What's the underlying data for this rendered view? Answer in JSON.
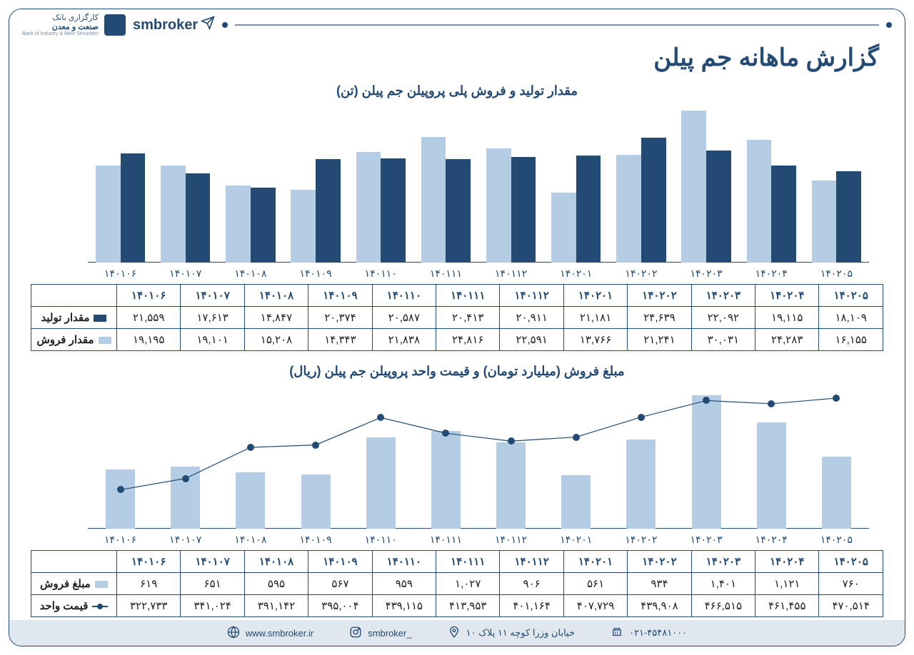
{
  "header": {
    "brand_line1": "کارگزاری بانک",
    "brand_line2": "صنعت و معدن",
    "brand_sub": "Bank of Industry & Mine Securities",
    "smbroker": "smbroker"
  },
  "page_title": "گزارش ماهانه جم پیلن",
  "months": [
    "۱۴۰۱۰۶",
    "۱۴۰۱۰۷",
    "۱۴۰۱۰۸",
    "۱۴۰۱۰۹",
    "۱۴۰۱۱۰",
    "۱۴۰۱۱۱",
    "۱۴۰۱۱۲",
    "۱۴۰۲۰۱",
    "۱۴۰۲۰۲",
    "۱۴۰۲۰۳",
    "۱۴۰۲۰۴",
    "۱۴۰۲۰۵"
  ],
  "chart1": {
    "title": "مقدار تولید و فروش پلی پروپیلن جم پیلن (تن)",
    "type": "bar",
    "series": [
      {
        "name": "مقدار تولید",
        "color": "#234a72",
        "values": [
          21559,
          17613,
          14847,
          20374,
          20587,
          20413,
          20911,
          21181,
          24639,
          22092,
          19115,
          18109
        ],
        "labels": [
          "۲۱,۵۵۹",
          "۱۷,۶۱۳",
          "۱۴,۸۴۷",
          "۲۰,۳۷۴",
          "۲۰,۵۸۷",
          "۲۰,۴۱۳",
          "۲۰,۹۱۱",
          "۲۱,۱۸۱",
          "۲۴,۶۳۹",
          "۲۲,۰۹۲",
          "۱۹,۱۱۵",
          "۱۸,۱۰۹"
        ]
      },
      {
        "name": "مقدار فروش",
        "color": "#b4cde4",
        "values": [
          19195,
          19101,
          15208,
          14343,
          21838,
          24816,
          22591,
          13766,
          21241,
          30031,
          24283,
          16155
        ],
        "labels": [
          "۱۹,۱۹۵",
          "۱۹,۱۰۱",
          "۱۵,۲۰۸",
          "۱۴,۳۴۳",
          "۲۱,۸۳۸",
          "۲۴,۸۱۶",
          "۲۲,۵۹۱",
          "۱۳,۷۶۶",
          "۲۱,۲۴۱",
          "۳۰,۰۳۱",
          "۲۴,۲۸۳",
          "۱۶,۱۵۵"
        ]
      }
    ],
    "ylim": [
      0,
      31000
    ],
    "bar_width_pct": 38,
    "axis_color": "#234a72",
    "background": "#ffffff"
  },
  "chart2": {
    "title": "مبلغ فروش (میلیارد تومان) و قیمت واحد پروپیلن جم پیلن (ریال)",
    "type": "bar+line",
    "bar": {
      "name": "مبلغ فروش",
      "color": "#b4cde4",
      "values": [
        619,
        651,
        595,
        567,
        959,
        1027,
        906,
        561,
        934,
        1401,
        1121,
        760
      ],
      "labels": [
        "۶۱۹",
        "۶۵۱",
        "۵۹۵",
        "۵۶۷",
        "۹۵۹",
        "۱,۰۲۷",
        "۹۰۶",
        "۵۶۱",
        "۹۳۴",
        "۱,۴۰۱",
        "۱,۱۲۱",
        "۷۶۰"
      ],
      "ylim": [
        0,
        1500
      ]
    },
    "line": {
      "name": "قیمت واحد",
      "color": "#234a72",
      "stroke_width": 2.5,
      "marker_r": 5,
      "values": [
        322733,
        341024,
        391142,
        395004,
        439115,
        413953,
        401164,
        407729,
        439908,
        466515,
        461455,
        470514
      ],
      "labels": [
        "۳۲۲,۷۳۳",
        "۳۴۱,۰۲۴",
        "۳۹۱,۱۴۲",
        "۳۹۵,۰۰۴",
        "۴۳۹,۱۱۵",
        "۴۱۳,۹۵۳",
        "۴۰۱,۱۶۴",
        "۴۰۷,۷۲۹",
        "۴۳۹,۹۰۸",
        "۴۶۶,۵۱۵",
        "۴۶۱,۴۵۵",
        "۴۷۰,۵۱۴"
      ],
      "ylim": [
        260000,
        490000
      ]
    },
    "bar_width_pct": 45,
    "axis_color": "#234a72"
  },
  "footer": {
    "web": "www.smbroker.ir",
    "insta": "smbroker_",
    "addr": "خیابان وزرا کوچه ۱۱ پلاک ۱۰",
    "tel": "۰۲۱-۴۵۴۸۱۰۰۰"
  }
}
